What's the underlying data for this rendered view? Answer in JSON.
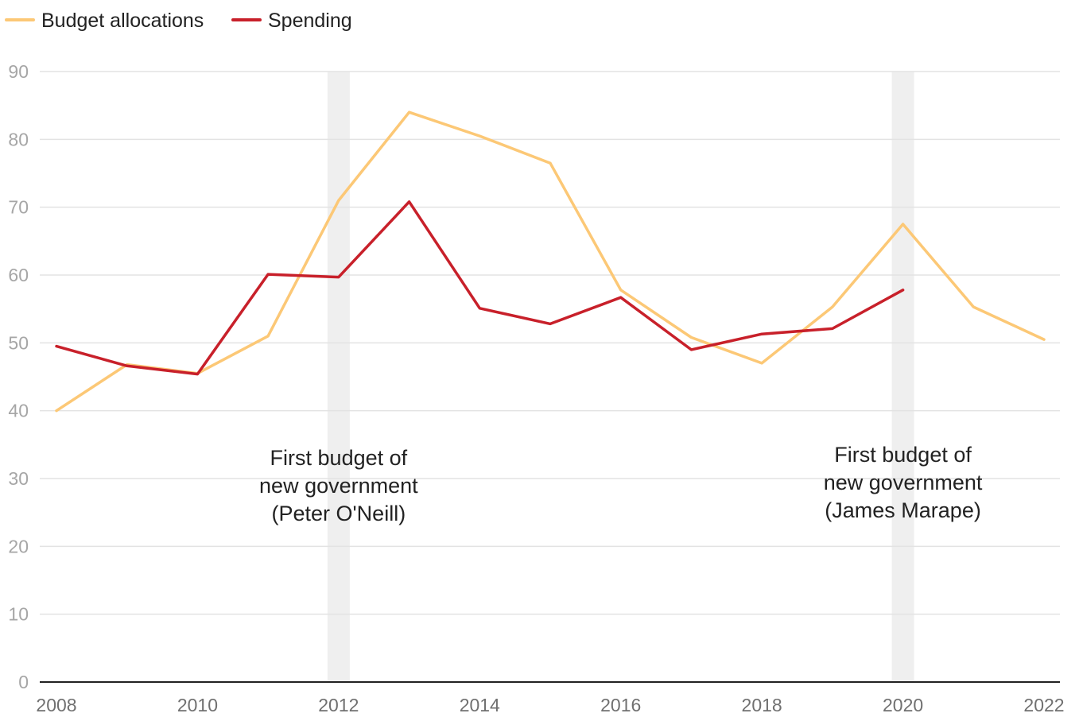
{
  "chart_data": {
    "type": "line",
    "title": "",
    "xlabel": "",
    "ylabel": "",
    "ylim": [
      0,
      90
    ],
    "xlim": [
      2008,
      2022
    ],
    "yticks": [
      0,
      10,
      20,
      30,
      40,
      50,
      60,
      70,
      80,
      90
    ],
    "xticks": [
      2008,
      2010,
      2012,
      2014,
      2016,
      2018,
      2020,
      2022
    ],
    "grid": true,
    "legend_position": "top-left",
    "series": [
      {
        "name": "Budget allocations",
        "color": "#fcc876",
        "x": [
          2008,
          2009,
          2010,
          2011,
          2012,
          2013,
          2014,
          2015,
          2016,
          2017,
          2018,
          2019,
          2020,
          2021,
          2022
        ],
        "values": [
          40.0,
          46.8,
          45.5,
          51.0,
          71.0,
          84.0,
          80.5,
          76.5,
          57.8,
          50.8,
          47.0,
          55.3,
          67.5,
          55.3,
          50.5
        ]
      },
      {
        "name": "Spending",
        "color": "#c8202a",
        "x": [
          2008,
          2009,
          2010,
          2011,
          2012,
          2013,
          2014,
          2015,
          2016,
          2017,
          2018,
          2019,
          2020
        ],
        "values": [
          49.5,
          46.6,
          45.4,
          60.1,
          59.7,
          70.8,
          55.1,
          52.8,
          56.7,
          49.0,
          51.3,
          52.1,
          57.8
        ]
      }
    ],
    "highlights": [
      {
        "x": 2012,
        "lines": [
          "First budget of",
          "new government",
          "(Peter O'Neill)"
        ]
      },
      {
        "x": 2020,
        "lines": [
          "First budget of",
          "new government",
          "(James Marape)"
        ]
      }
    ]
  }
}
